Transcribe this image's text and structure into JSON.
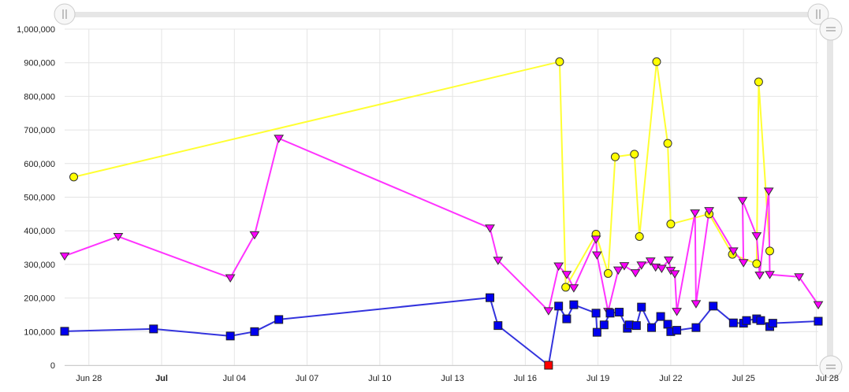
{
  "chart_data": {
    "type": "line",
    "title": "",
    "xlabel": "",
    "ylabel": "",
    "ylim": [
      0,
      1000000
    ],
    "grid": true,
    "y_ticks": [
      "0",
      "100,000",
      "200,000",
      "300,000",
      "400,000",
      "500,000",
      "600,000",
      "700,000",
      "800,000",
      "900,000",
      "1,000,000"
    ],
    "x_ticks": [
      {
        "date": "2023-06-28",
        "label": "Jun 28",
        "bold": false
      },
      {
        "date": "2023-07-01",
        "label": "Jul",
        "bold": true
      },
      {
        "date": "2023-07-04",
        "label": "Jul 04",
        "bold": false
      },
      {
        "date": "2023-07-07",
        "label": "Jul 07",
        "bold": false
      },
      {
        "date": "2023-07-10",
        "label": "Jul 10",
        "bold": false
      },
      {
        "date": "2023-07-13",
        "label": "Jul 13",
        "bold": false
      },
      {
        "date": "2023-07-16",
        "label": "Jul 16",
        "bold": false
      },
      {
        "date": "2023-07-19",
        "label": "Jul 19",
        "bold": false
      },
      {
        "date": "2023-07-22",
        "label": "Jul 22",
        "bold": false
      },
      {
        "date": "2023-07-25",
        "label": "Jul 25",
        "bold": false
      },
      {
        "date": "2023-07-28",
        "label": "Jul 28",
        "bold": false
      }
    ],
    "xlim": [
      "2023-06-27 00:00",
      "2023-07-28 02:00"
    ],
    "series": [
      {
        "color": "#ffff33",
        "marker": "circle",
        "marker_color": "#ffff00",
        "points": [
          [
            "2023-06-27 09:00",
            560000
          ],
          [
            "2023-07-17 10:00",
            903000
          ],
          [
            "2023-07-17 16:00",
            232000
          ],
          [
            "2023-07-18 22:00",
            390000
          ],
          [
            "2023-07-19 10:00",
            273000
          ],
          [
            "2023-07-19 17:00",
            620000
          ],
          [
            "2023-07-20 12:00",
            628000
          ],
          [
            "2023-07-20 17:00",
            383000
          ],
          [
            "2023-07-21 10:00",
            903000
          ],
          [
            "2023-07-21 21:00",
            660000
          ],
          [
            "2023-07-22 00:00",
            420000
          ],
          [
            "2023-07-23 14:00",
            450000
          ],
          [
            "2023-07-24 13:00",
            330000
          ],
          [
            "2023-07-25 13:00",
            302000
          ],
          [
            "2023-07-25 15:00",
            843000
          ],
          [
            "2023-07-26 02:00",
            340000
          ]
        ]
      },
      {
        "color": "#ff33ff",
        "marker": "triangle-down",
        "marker_color": "#ff00ff",
        "points": [
          [
            "2023-06-27 00:00",
            325000
          ],
          [
            "2023-06-29 05:00",
            383000
          ],
          [
            "2023-07-03 20:00",
            260000
          ],
          [
            "2023-07-04 20:00",
            388000
          ],
          [
            "2023-07-05 20:00",
            675000
          ],
          [
            "2023-07-14 13:00",
            408000
          ],
          [
            "2023-07-14 21:00",
            312000
          ],
          [
            "2023-07-16 23:00",
            162000
          ],
          [
            "2023-07-17 09:00",
            295000
          ],
          [
            "2023-07-17 17:00",
            270000
          ],
          [
            "2023-07-18 00:00",
            230000
          ],
          [
            "2023-07-18 22:00",
            375000
          ],
          [
            "2023-07-18 23:00",
            328000
          ],
          [
            "2023-07-19 10:00",
            160000
          ],
          [
            "2023-07-19 20:00",
            283000
          ],
          [
            "2023-07-20 02:00",
            296000
          ],
          [
            "2023-07-20 13:00",
            275000
          ],
          [
            "2023-07-20 19:00",
            298000
          ],
          [
            "2023-07-21 04:00",
            310000
          ],
          [
            "2023-07-21 09:00",
            292000
          ],
          [
            "2023-07-21 15:00",
            288000
          ],
          [
            "2023-07-21 22:00",
            313000
          ],
          [
            "2023-07-22 00:00",
            282000
          ],
          [
            "2023-07-22 04:00",
            272000
          ],
          [
            "2023-07-22 06:00",
            160000
          ],
          [
            "2023-07-23 00:00",
            453000
          ],
          [
            "2023-07-23 01:00",
            183000
          ],
          [
            "2023-07-23 14:00",
            460000
          ],
          [
            "2023-07-24 14:00",
            340000
          ],
          [
            "2023-07-25 00:00",
            305000
          ],
          [
            "2023-07-24 23:00",
            490000
          ],
          [
            "2023-07-25 13:00",
            385000
          ],
          [
            "2023-07-25 16:00",
            268000
          ],
          [
            "2023-07-26 01:00",
            518000
          ],
          [
            "2023-07-26 02:00",
            270000
          ],
          [
            "2023-07-27 07:00",
            263000
          ],
          [
            "2023-07-28 02:00",
            180000
          ]
        ]
      },
      {
        "color": "#3333dd",
        "marker": "square",
        "marker_color": "#0000ee",
        "points": [
          [
            "2023-06-27 00:00",
            101000
          ],
          [
            "2023-06-30 16:00",
            108000
          ],
          [
            "2023-07-03 20:00",
            87000
          ],
          [
            "2023-07-04 20:00",
            100000
          ],
          [
            "2023-07-05 20:00",
            136000
          ],
          [
            "2023-07-14 13:00",
            201000
          ],
          [
            "2023-07-14 21:00",
            118000
          ],
          [
            "2023-07-16 23:00",
            0
          ],
          [
            "2023-07-17 09:00",
            176000
          ],
          [
            "2023-07-17 17:00",
            138000
          ],
          [
            "2023-07-18 00:00",
            180000
          ],
          [
            "2023-07-18 22:00",
            155000
          ],
          [
            "2023-07-18 23:00",
            98000
          ],
          [
            "2023-07-19 06:00",
            120000
          ],
          [
            "2023-07-19 12:00",
            155000
          ],
          [
            "2023-07-19 21:00",
            158000
          ],
          [
            "2023-07-20 05:00",
            110000
          ],
          [
            "2023-07-20 07:00",
            120000
          ],
          [
            "2023-07-20 14:00",
            118000
          ],
          [
            "2023-07-20 19:00",
            173000
          ],
          [
            "2023-07-21 05:00",
            112000
          ],
          [
            "2023-07-21 14:00",
            145000
          ],
          [
            "2023-07-21 21:00",
            122000
          ],
          [
            "2023-07-22 00:00",
            100000
          ],
          [
            "2023-07-22 06:00",
            104000
          ],
          [
            "2023-07-23 01:00",
            112000
          ],
          [
            "2023-07-23 18:00",
            176000
          ],
          [
            "2023-07-24 14:00",
            126000
          ],
          [
            "2023-07-25 00:00",
            125000
          ],
          [
            "2023-07-25 03:00",
            133000
          ],
          [
            "2023-07-25 13:00",
            138000
          ],
          [
            "2023-07-25 17:00",
            133000
          ],
          [
            "2023-07-26 02:00",
            115000
          ],
          [
            "2023-07-26 05:00",
            125000
          ],
          [
            "2023-07-28 02:00",
            131000
          ]
        ],
        "highlight_points": [
          [
            "2023-07-16 23:00",
            0,
            "#ff0000"
          ]
        ]
      }
    ]
  }
}
